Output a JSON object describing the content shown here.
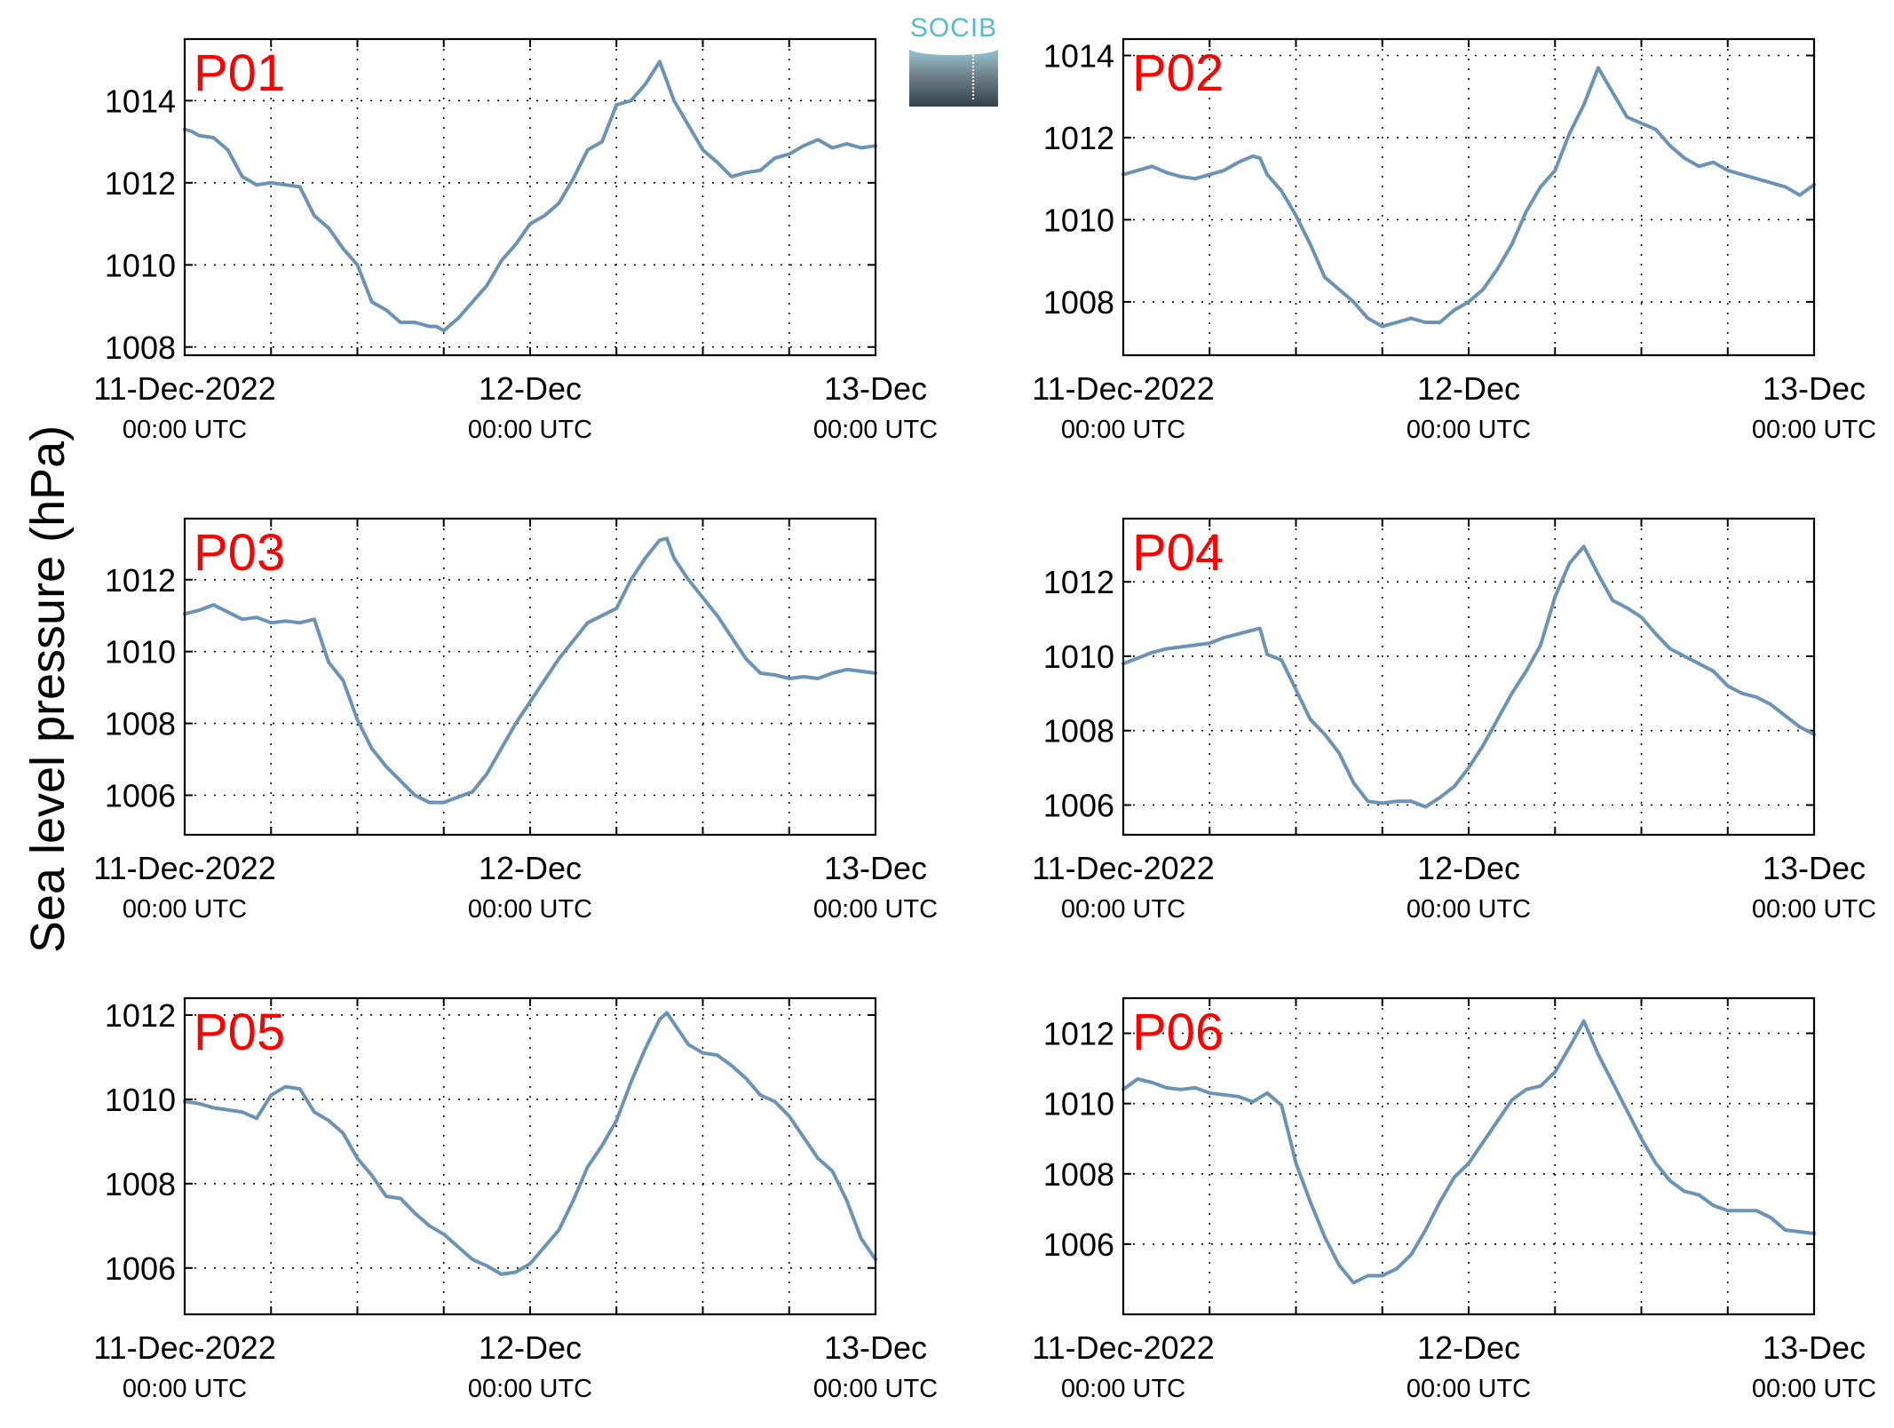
{
  "figure": {
    "ylabel": "Sea level pressure (hPa)",
    "logo_text": "SOCIB",
    "line_color": "#6b93b5",
    "panel_label_color": "#ff0000",
    "x_range_hours": [
      0,
      48
    ],
    "x_ticks": [
      {
        "t": 0,
        "date": "11-Dec-2022",
        "time": "00:00 UTC"
      },
      {
        "t": 24,
        "date": "12-Dec",
        "time": "00:00 UTC"
      },
      {
        "t": 48,
        "date": "13-Dec",
        "time": "00:00 UTC"
      }
    ],
    "x_grid_hours": [
      6,
      12,
      18,
      24,
      30,
      36,
      42
    ]
  },
  "chart_data": [
    {
      "type": "line",
      "label": "P01",
      "ylim": [
        1007.8,
        1015.5
      ],
      "yticks": [
        1008,
        1010,
        1012,
        1014
      ],
      "grid": true,
      "series": [
        {
          "x": [
            0,
            0.5,
            1,
            2,
            3,
            4,
            5,
            6,
            7,
            8,
            9,
            10,
            11,
            12,
            13,
            14,
            15,
            16,
            17,
            17.5,
            18,
            19,
            20,
            21,
            22,
            23,
            24,
            25,
            26,
            27,
            28,
            29,
            30,
            31,
            32,
            33,
            34,
            35,
            36,
            37,
            38,
            39,
            40,
            41,
            42,
            43,
            44,
            45,
            46,
            47,
            48
          ],
          "y": [
            1013.3,
            1013.25,
            1013.15,
            1013.1,
            1012.8,
            1012.15,
            1011.95,
            1012.0,
            1011.95,
            1011.9,
            1011.2,
            1010.9,
            1010.4,
            1010.0,
            1009.1,
            1008.9,
            1008.6,
            1008.6,
            1008.5,
            1008.5,
            1008.4,
            1008.7,
            1009.1,
            1009.5,
            1010.1,
            1010.5,
            1011.0,
            1011.2,
            1011.5,
            1012.1,
            1012.8,
            1013.0,
            1013.9,
            1014.0,
            1014.4,
            1014.95,
            1014.0,
            1013.4,
            1012.8,
            1012.5,
            1012.15,
            1012.25,
            1012.3,
            1012.6,
            1012.7,
            1012.9,
            1013.05,
            1012.85,
            1012.95,
            1012.85,
            1012.9
          ]
        }
      ]
    },
    {
      "type": "line",
      "label": "P02",
      "ylim": [
        1006.7,
        1014.4
      ],
      "yticks": [
        1008,
        1010,
        1012,
        1014
      ],
      "grid": true,
      "series": [
        {
          "x": [
            0,
            1,
            2,
            3,
            4,
            5,
            6,
            7,
            8,
            9,
            9.5,
            10,
            11,
            12,
            13,
            14,
            15,
            16,
            17,
            18,
            19,
            20,
            21,
            22,
            23,
            24,
            25,
            26,
            27,
            28,
            29,
            30,
            31,
            32,
            33,
            34,
            35,
            36,
            37,
            38,
            39,
            40,
            41,
            42,
            43,
            44,
            45,
            46,
            47,
            48
          ],
          "y": [
            1011.1,
            1011.2,
            1011.3,
            1011.15,
            1011.05,
            1011.0,
            1011.1,
            1011.2,
            1011.4,
            1011.55,
            1011.5,
            1011.1,
            1010.7,
            1010.1,
            1009.4,
            1008.6,
            1008.3,
            1008.0,
            1007.6,
            1007.4,
            1007.5,
            1007.6,
            1007.5,
            1007.5,
            1007.8,
            1008.0,
            1008.3,
            1008.8,
            1009.4,
            1010.2,
            1010.8,
            1011.2,
            1012.1,
            1012.8,
            1013.7,
            1013.1,
            1012.5,
            1012.35,
            1012.2,
            1011.8,
            1011.5,
            1011.3,
            1011.4,
            1011.2,
            1011.1,
            1011.0,
            1010.9,
            1010.8,
            1010.6,
            1010.85
          ]
        }
      ]
    },
    {
      "type": "line",
      "label": "P03",
      "ylim": [
        1004.9,
        1013.7
      ],
      "yticks": [
        1006,
        1008,
        1010,
        1012
      ],
      "grid": true,
      "series": [
        {
          "x": [
            0,
            1,
            2,
            3,
            4,
            5,
            6,
            7,
            8,
            9,
            10,
            11,
            12,
            13,
            14,
            15,
            16,
            17,
            18,
            19,
            20,
            21,
            22,
            23,
            24,
            25,
            26,
            27,
            28,
            29,
            30,
            31,
            32,
            33,
            33.5,
            34,
            35,
            36,
            37,
            38,
            39,
            40,
            41,
            42,
            43,
            44,
            45,
            46,
            47,
            48
          ],
          "y": [
            1011.05,
            1011.15,
            1011.3,
            1011.1,
            1010.9,
            1010.95,
            1010.8,
            1010.85,
            1010.8,
            1010.9,
            1009.7,
            1009.2,
            1008.1,
            1007.3,
            1006.8,
            1006.4,
            1006.0,
            1005.8,
            1005.8,
            1005.95,
            1006.1,
            1006.6,
            1007.3,
            1008.0,
            1008.6,
            1009.2,
            1009.8,
            1010.3,
            1010.8,
            1011.0,
            1011.2,
            1012.0,
            1012.6,
            1013.1,
            1013.15,
            1012.6,
            1012.0,
            1011.5,
            1011.0,
            1010.4,
            1009.8,
            1009.4,
            1009.35,
            1009.25,
            1009.3,
            1009.25,
            1009.4,
            1009.5,
            1009.45,
            1009.4
          ]
        }
      ]
    },
    {
      "type": "line",
      "label": "P04",
      "ylim": [
        1005.2,
        1013.7
      ],
      "yticks": [
        1006,
        1008,
        1010,
        1012
      ],
      "grid": true,
      "series": [
        {
          "x": [
            0,
            1,
            2,
            3,
            4,
            5,
            6,
            7,
            8,
            9,
            9.5,
            10,
            11,
            12,
            13,
            14,
            15,
            16,
            17,
            18,
            19,
            20,
            21,
            22,
            23,
            24,
            25,
            26,
            27,
            28,
            29,
            30,
            31,
            32,
            33,
            34,
            35,
            36,
            37,
            38,
            39,
            40,
            41,
            42,
            43,
            44,
            45,
            46,
            47,
            48
          ],
          "y": [
            1009.8,
            1009.95,
            1010.1,
            1010.2,
            1010.25,
            1010.3,
            1010.35,
            1010.5,
            1010.6,
            1010.7,
            1010.75,
            1010.05,
            1009.9,
            1009.1,
            1008.3,
            1007.9,
            1007.4,
            1006.6,
            1006.1,
            1006.05,
            1006.1,
            1006.1,
            1005.95,
            1006.2,
            1006.5,
            1007.0,
            1007.6,
            1008.3,
            1009.0,
            1009.6,
            1010.3,
            1011.6,
            1012.5,
            1012.95,
            1012.2,
            1011.5,
            1011.3,
            1011.05,
            1010.6,
            1010.2,
            1010.0,
            1009.8,
            1009.6,
            1009.2,
            1009.0,
            1008.9,
            1008.7,
            1008.4,
            1008.1,
            1007.9
          ]
        }
      ]
    },
    {
      "type": "line",
      "label": "P05",
      "ylim": [
        1004.9,
        1012.4
      ],
      "yticks": [
        1006,
        1008,
        1010,
        1012
      ],
      "grid": true,
      "series": [
        {
          "x": [
            0,
            1,
            2,
            3,
            4,
            5,
            6,
            7,
            8,
            9,
            10,
            11,
            12,
            13,
            14,
            15,
            16,
            17,
            18,
            19,
            20,
            21,
            22,
            23,
            24,
            25,
            26,
            27,
            28,
            29,
            30,
            31,
            32,
            33,
            33.5,
            34,
            35,
            36,
            37,
            38,
            39,
            40,
            41,
            42,
            43,
            44,
            45,
            46,
            47,
            48
          ],
          "y": [
            1009.95,
            1009.9,
            1009.8,
            1009.75,
            1009.7,
            1009.55,
            1010.1,
            1010.3,
            1010.25,
            1009.7,
            1009.5,
            1009.2,
            1008.6,
            1008.2,
            1007.7,
            1007.65,
            1007.3,
            1007.0,
            1006.8,
            1006.5,
            1006.2,
            1006.05,
            1005.85,
            1005.9,
            1006.1,
            1006.5,
            1006.9,
            1007.6,
            1008.4,
            1008.9,
            1009.5,
            1010.4,
            1011.2,
            1011.9,
            1012.05,
            1011.8,
            1011.3,
            1011.1,
            1011.05,
            1010.8,
            1010.5,
            1010.1,
            1009.95,
            1009.6,
            1009.1,
            1008.6,
            1008.3,
            1007.6,
            1006.7,
            1006.2
          ]
        }
      ]
    },
    {
      "type": "line",
      "label": "P06",
      "ylim": [
        1004.0,
        1013.0
      ],
      "yticks": [
        1006,
        1008,
        1010,
        1012
      ],
      "grid": true,
      "series": [
        {
          "x": [
            0,
            1,
            2,
            3,
            4,
            5,
            6,
            7,
            8,
            9,
            10,
            11,
            12,
            13,
            14,
            15,
            16,
            17,
            18,
            19,
            20,
            21,
            22,
            23,
            24,
            25,
            26,
            27,
            28,
            29,
            30,
            31,
            32,
            33,
            34,
            35,
            36,
            37,
            38,
            39,
            40,
            41,
            42,
            43,
            44,
            45,
            46,
            47,
            48
          ],
          "y": [
            1010.4,
            1010.7,
            1010.6,
            1010.45,
            1010.4,
            1010.45,
            1010.3,
            1010.25,
            1010.2,
            1010.05,
            1010.3,
            1009.95,
            1008.3,
            1007.2,
            1006.2,
            1005.4,
            1004.9,
            1005.1,
            1005.1,
            1005.3,
            1005.7,
            1006.4,
            1007.2,
            1007.9,
            1008.3,
            1008.9,
            1009.5,
            1010.1,
            1010.4,
            1010.5,
            1010.9,
            1011.6,
            1012.35,
            1011.4,
            1010.6,
            1009.8,
            1009.0,
            1008.3,
            1007.8,
            1007.5,
            1007.4,
            1007.1,
            1006.95,
            1006.95,
            1006.95,
            1006.75,
            1006.4,
            1006.35,
            1006.3
          ]
        }
      ]
    }
  ]
}
